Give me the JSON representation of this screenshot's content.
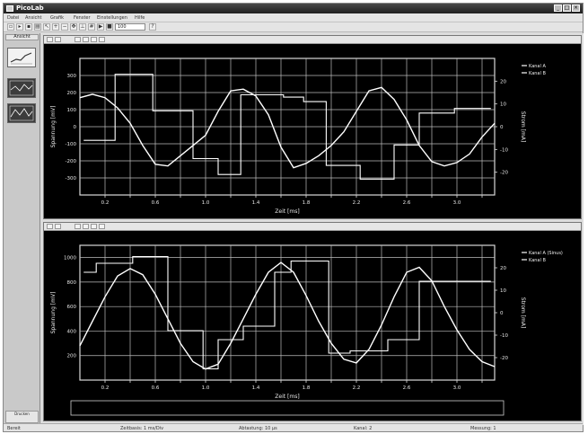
{
  "window": {
    "title": "PicoLab"
  },
  "menubar": {
    "items": [
      "Datei",
      "Ansicht",
      "Grafik",
      "Fenster",
      "Einstellungen",
      "Hilfe"
    ]
  },
  "toolbar": {
    "zoom_value": "100"
  },
  "sidebar": {
    "header": "Ansicht",
    "footer": "Drucken"
  },
  "statusbar": {
    "fields": [
      "Bereit",
      "Zeitbasis: 1 ms/Div",
      "Abtastung: 10 µs",
      "Kanal: 2",
      "Messung: 1"
    ]
  },
  "chart_data": [
    {
      "type": "line",
      "xlim": [
        0,
        3.3
      ],
      "x_ticks": [
        "0.2",
        "0.4",
        "0.6",
        "0.8",
        "1.0",
        "1.2",
        "1.4",
        "1.6",
        "1.8",
        "2.0",
        "2.2",
        "2.4",
        "2.6",
        "2.8",
        "3.0",
        "3.2"
      ],
      "x_tick_labels": [
        "0.2",
        "0.6",
        "1.0",
        "1.4",
        "1.8",
        "2.2",
        "2.6",
        "3.0"
      ],
      "xlabel": "Zeit [ms]",
      "ylim_left": [
        -400,
        400
      ],
      "yticks_left": [
        "300",
        "200",
        "100",
        "0",
        "-100",
        "-200",
        "-300"
      ],
      "ylabel_left": "Spannung [mV]",
      "ylim_right": [
        -30,
        30
      ],
      "yticks_right": [
        "20",
        "10",
        "0",
        "-10",
        "-20"
      ],
      "ylabel_right": "Strom [mA]",
      "grid": true,
      "legend": "top-right",
      "series": [
        {
          "name": "Kanal A",
          "axis": "left",
          "style": "line",
          "x": [
            0.0,
            0.1,
            0.2,
            0.3,
            0.4,
            0.5,
            0.6,
            0.7,
            0.8,
            0.9,
            1.0,
            1.1,
            1.2,
            1.3,
            1.4,
            1.5,
            1.6,
            1.7,
            1.8,
            1.9,
            2.0,
            2.1,
            2.2,
            2.3,
            2.4,
            2.5,
            2.6,
            2.7,
            2.8,
            2.9,
            3.0,
            3.1,
            3.2,
            3.3
          ],
          "values": [
            170,
            190,
            170,
            110,
            20,
            -110,
            -220,
            -230,
            -170,
            -110,
            -50,
            90,
            210,
            220,
            180,
            70,
            -120,
            -240,
            -215,
            -170,
            -110,
            -30,
            90,
            210,
            230,
            160,
            40,
            -110,
            -205,
            -230,
            -210,
            -160,
            -60,
            20
          ]
        },
        {
          "name": "Kanal B",
          "axis": "right",
          "style": "step",
          "x": [
            0.03,
            0.28,
            0.28,
            0.58,
            0.58,
            0.9,
            0.9,
            1.1,
            1.1,
            1.28,
            1.28,
            1.62,
            1.62,
            1.78,
            1.78,
            1.96,
            1.96,
            2.23,
            2.23,
            2.5,
            2.5,
            2.7,
            2.7,
            2.98,
            2.98,
            3.27
          ],
          "values": [
            -6,
            -6,
            23,
            23,
            7,
            7,
            -14,
            -14,
            -21,
            -21,
            14,
            14,
            13,
            13,
            11,
            11,
            -17,
            -17,
            -23,
            -23,
            -8,
            -8,
            6,
            6,
            8,
            8
          ]
        }
      ]
    },
    {
      "type": "line",
      "xlim": [
        0,
        3.3
      ],
      "x_ticks": [
        "0.2",
        "0.4",
        "0.6",
        "0.8",
        "1.0",
        "1.2",
        "1.4",
        "1.6",
        "1.8",
        "2.0",
        "2.2",
        "2.4",
        "2.6",
        "2.8",
        "3.0",
        "3.2"
      ],
      "x_tick_labels": [
        "0.2",
        "0.6",
        "1.0",
        "1.4",
        "1.8",
        "2.2",
        "2.6",
        "3.0"
      ],
      "xlabel": "Zeit [ms]",
      "ylim_left": [
        0,
        1100
      ],
      "yticks_left": [
        "1000",
        "800",
        "600",
        "400",
        "200"
      ],
      "ylabel_left": "Spannung [mV]",
      "ylim_right": [
        -30,
        30
      ],
      "yticks_right": [
        "20",
        "10",
        "0",
        "-10",
        "-20"
      ],
      "ylabel_right": "Strom [mA]",
      "grid": true,
      "legend": "top-right",
      "series": [
        {
          "name": "Kanal A (Sinus)",
          "axis": "left",
          "style": "line",
          "x": [
            0.0,
            0.1,
            0.2,
            0.3,
            0.4,
            0.5,
            0.6,
            0.7,
            0.8,
            0.9,
            1.0,
            1.1,
            1.2,
            1.3,
            1.4,
            1.5,
            1.6,
            1.7,
            1.8,
            1.9,
            2.0,
            2.1,
            2.2,
            2.3,
            2.4,
            2.5,
            2.6,
            2.7,
            2.8,
            2.9,
            3.0,
            3.1,
            3.2,
            3.3
          ],
          "values": [
            280,
            480,
            680,
            850,
            910,
            860,
            700,
            500,
            300,
            150,
            90,
            130,
            300,
            500,
            700,
            880,
            960,
            880,
            690,
            480,
            300,
            170,
            140,
            250,
            450,
            680,
            880,
            920,
            810,
            600,
            410,
            250,
            150,
            110
          ]
        },
        {
          "name": "Kanal B",
          "axis": "right",
          "style": "step",
          "x": [
            0.03,
            0.13,
            0.13,
            0.42,
            0.42,
            0.7,
            0.7,
            0.98,
            0.98,
            1.1,
            1.1,
            1.3,
            1.3,
            1.55,
            1.55,
            1.68,
            1.68,
            1.98,
            1.98,
            2.15,
            2.15,
            2.45,
            2.45,
            2.7,
            2.7,
            3.27
          ],
          "values": [
            18,
            18,
            22,
            22,
            25,
            25,
            -8,
            -8,
            -25,
            -25,
            -12,
            -12,
            -6,
            -6,
            18,
            18,
            23,
            23,
            -18,
            -18,
            -17,
            -17,
            -12,
            -12,
            14,
            14
          ]
        }
      ]
    }
  ]
}
